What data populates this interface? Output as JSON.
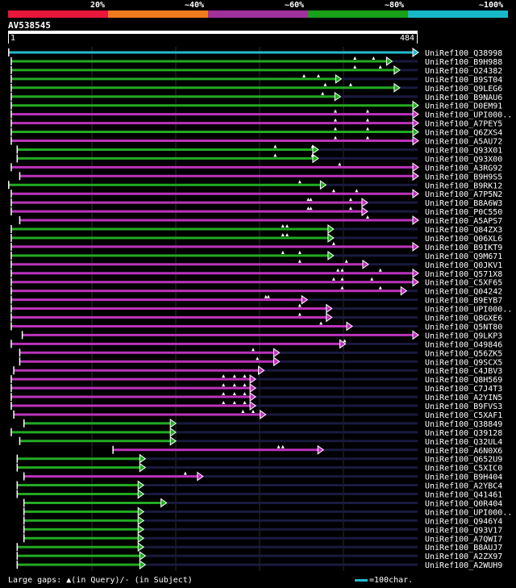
{
  "legend": {
    "labels": [
      "20%",
      "~40%",
      "~60%",
      "~80%",
      "~100%"
    ],
    "colors": [
      "#e8163a",
      "#f07a1e",
      "#a0309c",
      "#18a018",
      "#18b8c8"
    ]
  },
  "query": {
    "name": "AV538545",
    "start": "1",
    "end": "484"
  },
  "colors": {
    "magenta": "#bb33bb",
    "green": "#22aa22",
    "cyan": "#22bbcc",
    "dark": "#1a1a40",
    "white": "#ffffff",
    "grid": "#2c2c2c"
  },
  "hits": [
    {
      "name": "UniRef100_Q38998",
      "start": 2,
      "end": 484,
      "color": "cyan",
      "gaps": []
    },
    {
      "name": "UniRef100_B9H988",
      "start": 5,
      "end": 453,
      "color": "green",
      "gaps": [
        410,
        432
      ]
    },
    {
      "name": "UniRef100_O24382",
      "start": 5,
      "end": 462,
      "color": "green",
      "gaps": [
        410,
        440
      ]
    },
    {
      "name": "UniRef100_B9ST04",
      "start": 5,
      "end": 393,
      "color": "green",
      "gaps": [
        350,
        367
      ]
    },
    {
      "name": "UniRef100_Q9LEG6",
      "start": 5,
      "end": 462,
      "color": "green",
      "gaps": [
        375,
        405
      ]
    },
    {
      "name": "UniRef100_B9NAU6",
      "start": 5,
      "end": 392,
      "color": "green",
      "gaps": [
        372
      ]
    },
    {
      "name": "UniRef100_D0EM91",
      "start": 5,
      "end": 484,
      "color": "green",
      "gaps": []
    },
    {
      "name": "UniRef100_UPI000..",
      "start": 5,
      "end": 484,
      "color": "magenta",
      "gaps": [
        387,
        425
      ]
    },
    {
      "name": "UniRef100_A7PEY5",
      "start": 5,
      "end": 484,
      "color": "magenta",
      "gaps": [
        387,
        425
      ]
    },
    {
      "name": "UniRef100_Q6ZXS4",
      "start": 5,
      "end": 484,
      "color": "green",
      "gaps": [
        387,
        425
      ]
    },
    {
      "name": "UniRef100_A5AU72",
      "start": 5,
      "end": 484,
      "color": "magenta",
      "gaps": [
        387,
        425
      ]
    },
    {
      "name": "UniRef100_Q93X01",
      "start": 12,
      "end": 366,
      "color": "green",
      "gaps": [
        316,
        360
      ]
    },
    {
      "name": "UniRef100_Q93X00",
      "start": 12,
      "end": 366,
      "color": "green",
      "gaps": [
        316,
        360
      ]
    },
    {
      "name": "UniRef100_A3RG92",
      "start": 5,
      "end": 484,
      "color": "magenta",
      "gaps": [
        392
      ]
    },
    {
      "name": "UniRef100_B9H9S5",
      "start": 15,
      "end": 484,
      "color": "magenta",
      "gaps": []
    },
    {
      "name": "UniRef100_B9RK12",
      "start": 2,
      "end": 375,
      "color": "green",
      "gaps": [
        345
      ]
    },
    {
      "name": "UniRef100_A7P5N2",
      "start": 5,
      "end": 484,
      "color": "magenta",
      "gaps": [
        385,
        412
      ]
    },
    {
      "name": "UniRef100_B8A6W3",
      "start": 5,
      "end": 424,
      "color": "magenta",
      "gaps": [
        355,
        358,
        405
      ]
    },
    {
      "name": "UniRef100_P0C550",
      "start": 5,
      "end": 424,
      "color": "magenta",
      "gaps": [
        355,
        358,
        405
      ]
    },
    {
      "name": "UniRef100_A5APS7",
      "start": 15,
      "end": 484,
      "color": "magenta",
      "gaps": [
        425
      ]
    },
    {
      "name": "UniRef100_Q84ZX3",
      "start": 5,
      "end": 384,
      "color": "green",
      "gaps": [
        325,
        330
      ]
    },
    {
      "name": "UniRef100_Q06XL6",
      "start": 5,
      "end": 384,
      "color": "green",
      "gaps": [
        325,
        330
      ]
    },
    {
      "name": "UniRef100_B9IKT9",
      "start": 5,
      "end": 484,
      "color": "magenta",
      "gaps": [
        385
      ]
    },
    {
      "name": "UniRef100_Q9M671",
      "start": 5,
      "end": 384,
      "color": "green",
      "gaps": [
        325,
        345
      ]
    },
    {
      "name": "UniRef100_Q0JKV1",
      "start": 5,
      "end": 425,
      "color": "magenta",
      "gaps": [
        345,
        400
      ]
    },
    {
      "name": "UniRef100_Q571X8",
      "start": 5,
      "end": 484,
      "color": "magenta",
      "gaps": [
        390,
        395,
        440
      ]
    },
    {
      "name": "UniRef100_C5XF65",
      "start": 5,
      "end": 484,
      "color": "magenta",
      "gaps": [
        385,
        395,
        430
      ]
    },
    {
      "name": "UniRef100_Q04242",
      "start": 5,
      "end": 470,
      "color": "magenta",
      "gaps": [
        395,
        440
      ]
    },
    {
      "name": "UniRef100_B9EYB7",
      "start": 5,
      "end": 353,
      "color": "magenta",
      "gaps": [
        305,
        308
      ]
    },
    {
      "name": "UniRef100_UPI000..",
      "start": 5,
      "end": 382,
      "color": "magenta",
      "gaps": [
        345
      ]
    },
    {
      "name": "UniRef100_Q8GXE6",
      "start": 5,
      "end": 382,
      "color": "magenta",
      "gaps": [
        345
      ]
    },
    {
      "name": "UniRef100_Q5NT80",
      "start": 5,
      "end": 406,
      "color": "magenta",
      "gaps": [
        370
      ]
    },
    {
      "name": "UniRef100_Q9LKP3",
      "start": 18,
      "end": 484,
      "color": "magenta",
      "gaps": []
    },
    {
      "name": "UniRef100_O49846",
      "start": 5,
      "end": 398,
      "color": "magenta",
      "gaps": [
        398
      ]
    },
    {
      "name": "UniRef100_Q56ZK5",
      "start": 15,
      "end": 320,
      "color": "magenta",
      "gaps": [
        290
      ]
    },
    {
      "name": "UniRef100_Q9SCX5",
      "start": 15,
      "end": 320,
      "color": "magenta",
      "gaps": [
        295
      ]
    },
    {
      "name": "UniRef100_C4JBV3",
      "start": 8,
      "end": 302,
      "color": "magenta",
      "gaps": []
    },
    {
      "name": "UniRef100_Q8H569",
      "start": 5,
      "end": 292,
      "color": "magenta",
      "gaps": [
        255,
        268,
        280
      ]
    },
    {
      "name": "UniRef100_C7J4T3",
      "start": 5,
      "end": 292,
      "color": "magenta",
      "gaps": [
        255,
        268,
        280
      ]
    },
    {
      "name": "UniRef100_A2YIN5",
      "start": 5,
      "end": 292,
      "color": "magenta",
      "gaps": [
        255,
        268,
        280
      ]
    },
    {
      "name": "UniRef100_B9FVS3",
      "start": 5,
      "end": 292,
      "color": "magenta",
      "gaps": [
        255,
        268,
        280
      ]
    },
    {
      "name": "UniRef100_C5XAF1",
      "start": 8,
      "end": 304,
      "color": "magenta",
      "gaps": [
        278,
        290
      ]
    },
    {
      "name": "UniRef100_Q38849",
      "start": 20,
      "end": 198,
      "color": "green",
      "gaps": []
    },
    {
      "name": "UniRef100_Q39128",
      "start": 5,
      "end": 198,
      "color": "green",
      "gaps": []
    },
    {
      "name": "UniRef100_Q32UL4",
      "start": 15,
      "end": 198,
      "color": "green",
      "gaps": []
    },
    {
      "name": "UniRef100_A6N0X6",
      "start": 125,
      "end": 372,
      "color": "magenta",
      "gaps": [
        320,
        325
      ]
    },
    {
      "name": "UniRef100_Q652U9",
      "start": 12,
      "end": 162,
      "color": "green",
      "gaps": []
    },
    {
      "name": "UniRef100_C5XIC0",
      "start": 12,
      "end": 162,
      "color": "green",
      "gaps": []
    },
    {
      "name": "UniRef100_B9H404",
      "start": 20,
      "end": 230,
      "color": "magenta",
      "gaps": [
        210
      ]
    },
    {
      "name": "UniRef100_A2YBC4",
      "start": 12,
      "end": 160,
      "color": "green",
      "gaps": []
    },
    {
      "name": "UniRef100_Q41461",
      "start": 12,
      "end": 160,
      "color": "green",
      "gaps": []
    },
    {
      "name": "UniRef100_Q0R404",
      "start": 20,
      "end": 187,
      "color": "green",
      "gaps": []
    },
    {
      "name": "UniRef100_UPI000..",
      "start": 20,
      "end": 160,
      "color": "green",
      "gaps": []
    },
    {
      "name": "UniRef100_Q946Y4",
      "start": 20,
      "end": 160,
      "color": "green",
      "gaps": []
    },
    {
      "name": "UniRef100_Q93V17",
      "start": 20,
      "end": 160,
      "color": "green",
      "gaps": []
    },
    {
      "name": "UniRef100_A7QWI7",
      "start": 20,
      "end": 160,
      "color": "green",
      "gaps": []
    },
    {
      "name": "UniRef100_B8AUJ7",
      "start": 12,
      "end": 160,
      "color": "green",
      "gaps": []
    },
    {
      "name": "UniRef100_A2ZX97",
      "start": 12,
      "end": 162,
      "color": "green",
      "gaps": []
    },
    {
      "name": "UniRef100_A2WUH9",
      "start": 12,
      "end": 162,
      "color": "green",
      "gaps": []
    }
  ],
  "footer": {
    "gaps_prefix": "Large gaps:",
    "gaps_query": "(in Query)/",
    "gaps_subject": "- (in Subject)",
    "scale_label": "=100char.",
    "scale_color": "#22bbcc"
  }
}
